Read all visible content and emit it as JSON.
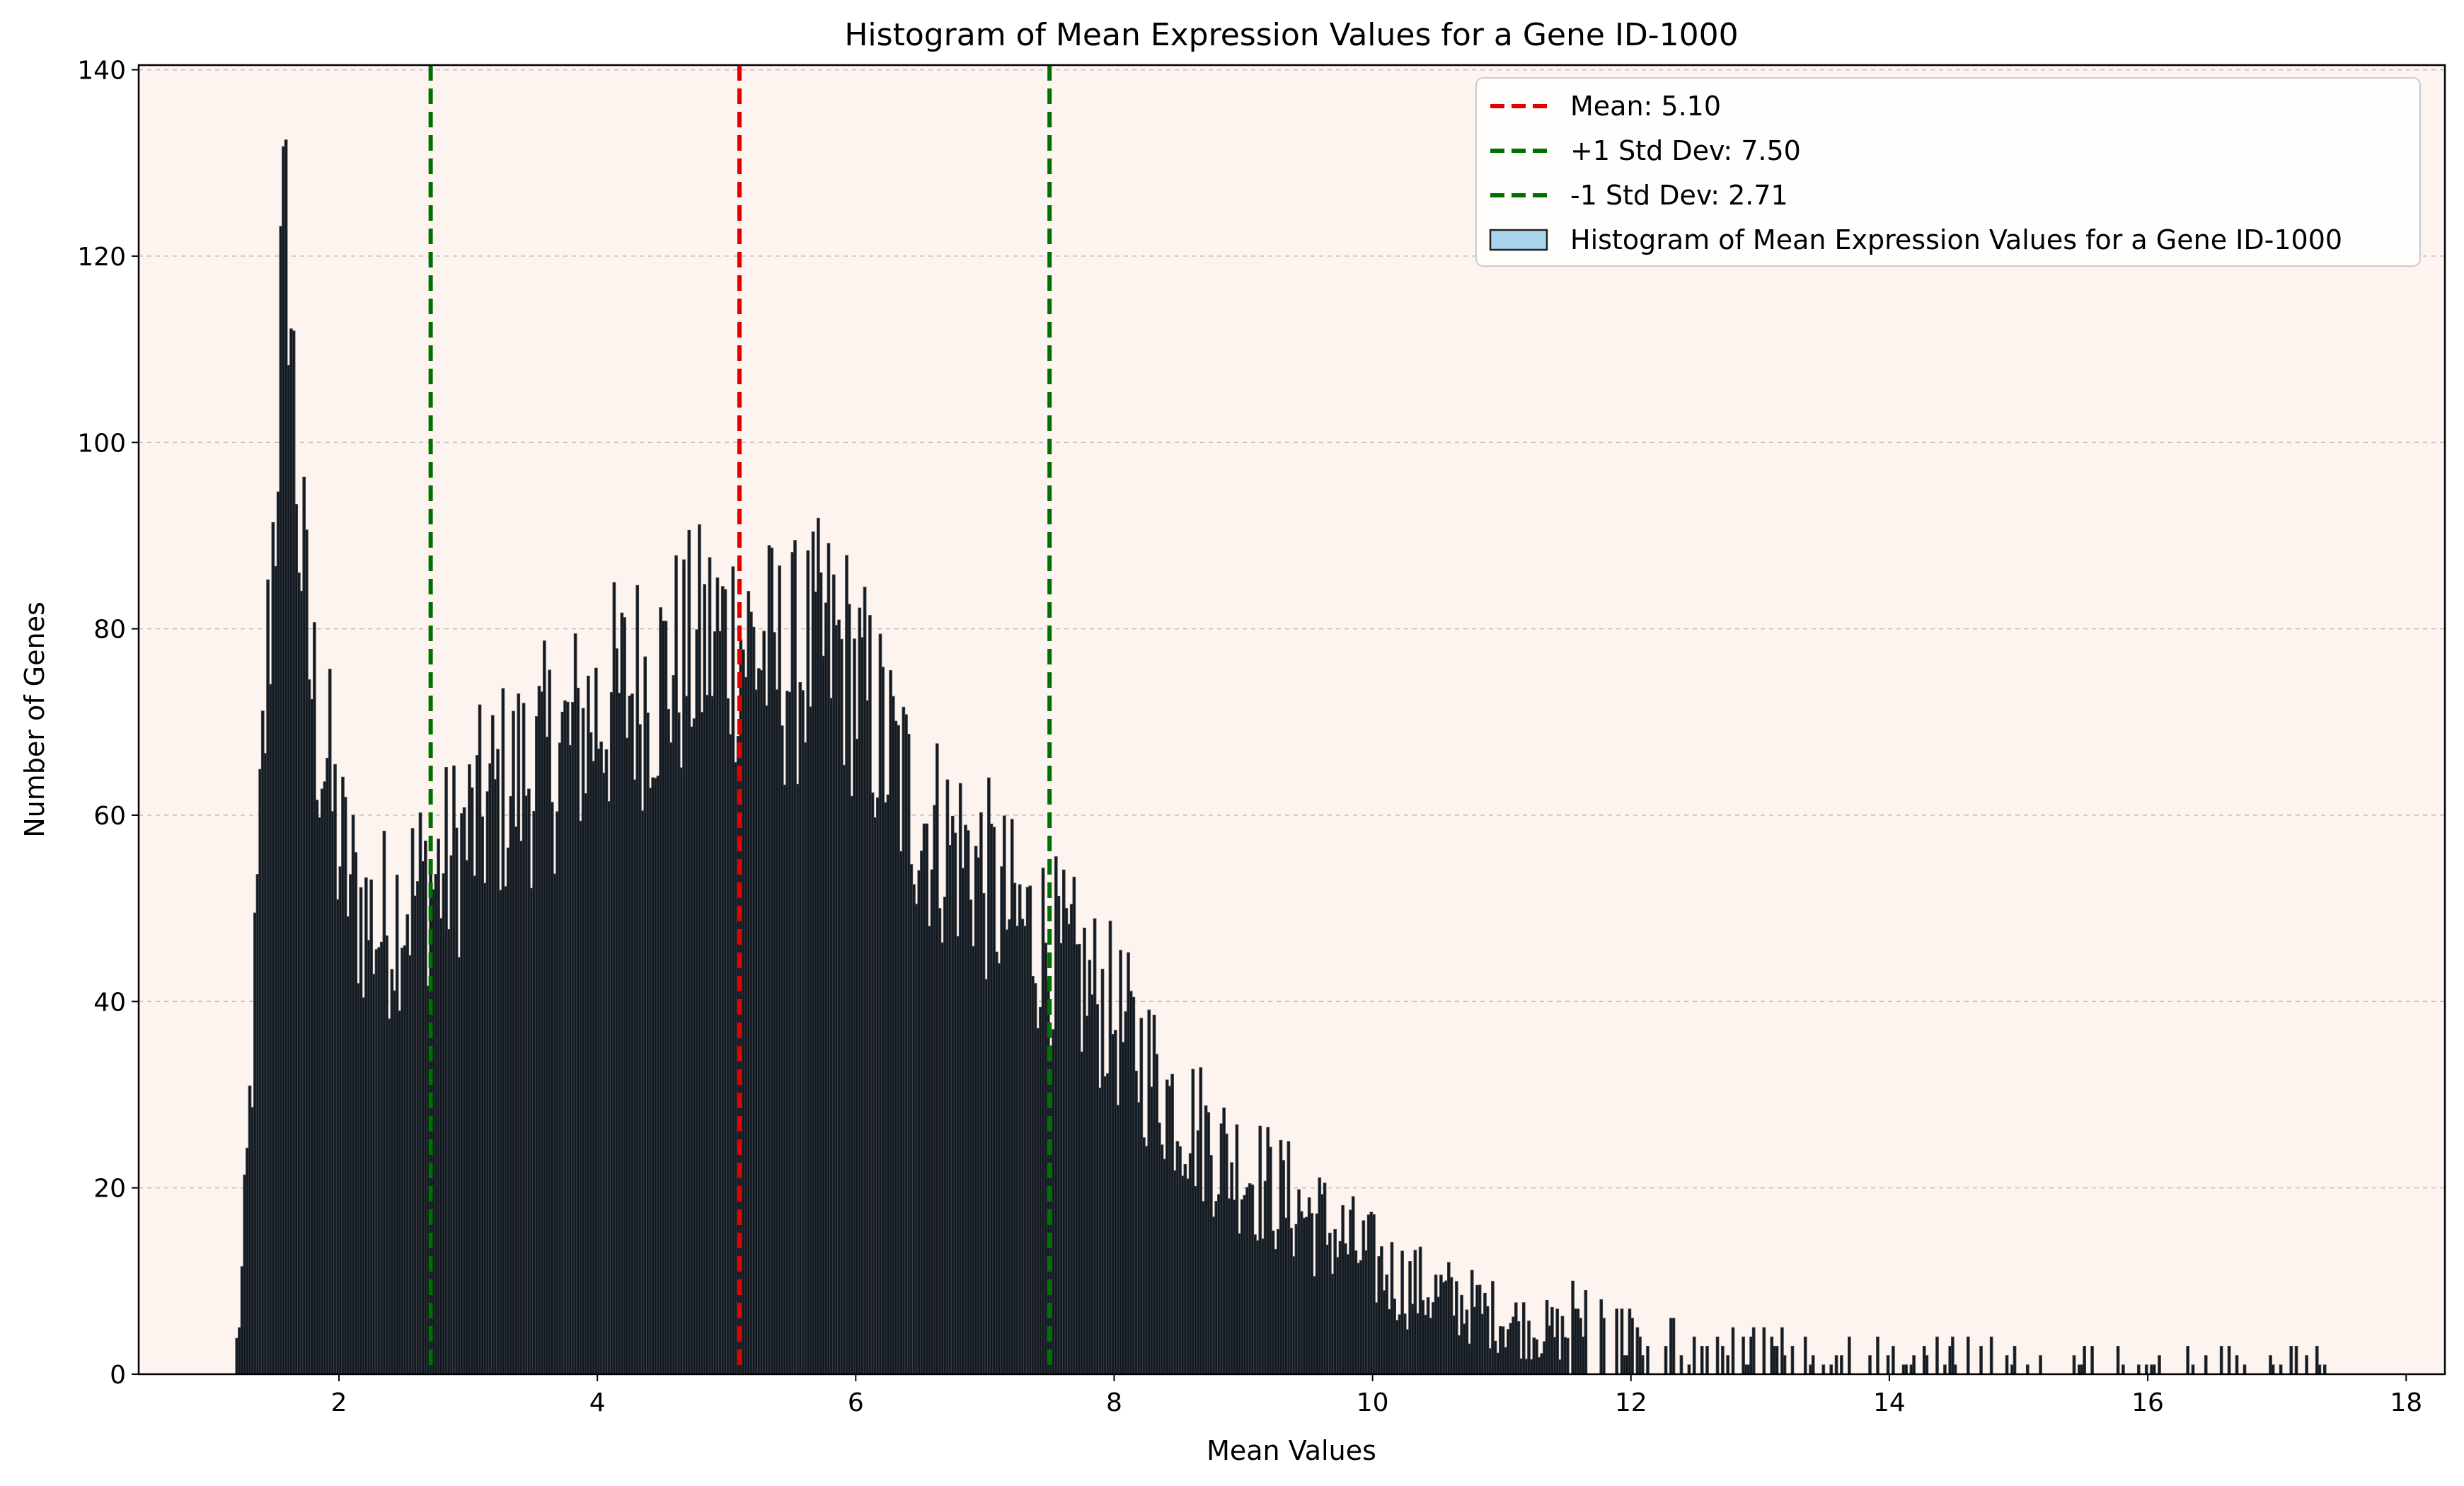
{
  "chart_data": {
    "type": "bar",
    "title": "Histogram of Mean Expression Values for a Gene ID-1000",
    "xlabel": "Mean Values",
    "ylabel": "Number of Genes",
    "xlim": [
      0.45,
      18.3
    ],
    "ylim": [
      0,
      140.5
    ],
    "xticks": [
      "2",
      "4",
      "6",
      "8",
      "10",
      "12",
      "14",
      "16",
      "18"
    ],
    "yticks": [
      "0",
      "20",
      "40",
      "60",
      "80",
      "100",
      "120",
      "140"
    ],
    "grid": "y-dashed",
    "background": "#fdf3ef",
    "bar_color": "#111820",
    "legend_position": "top-right",
    "histogram": {
      "bin_width": 0.02,
      "x": [
        1.2,
        1.25,
        1.3,
        1.35,
        1.4,
        1.45,
        1.5,
        1.55,
        1.6,
        1.65,
        1.7,
        1.75,
        1.8,
        1.85,
        1.9,
        1.95,
        2.0,
        2.1,
        2.2,
        2.3,
        2.4,
        2.5,
        2.6,
        2.7,
        2.8,
        2.9,
        3.0,
        3.1,
        3.2,
        3.3,
        3.4,
        3.5,
        3.6,
        3.7,
        3.8,
        3.9,
        4.0,
        4.1,
        4.2,
        4.3,
        4.4,
        4.5,
        4.6,
        4.7,
        4.8,
        4.9,
        5.0,
        5.1,
        5.2,
        5.3,
        5.4,
        5.5,
        5.6,
        5.7,
        5.8,
        5.9,
        6.0,
        6.1,
        6.2,
        6.3,
        6.4,
        6.5,
        6.6,
        6.7,
        6.8,
        6.9,
        7.0,
        7.1,
        7.2,
        7.3,
        7.4,
        7.5,
        7.6,
        7.7,
        7.8,
        7.9,
        8.0,
        8.2,
        8.4,
        8.6,
        8.8,
        9.0,
        9.2,
        9.4,
        9.6,
        9.8,
        10.0,
        10.2,
        10.4,
        10.6,
        10.8,
        11.0,
        11.2,
        11.4,
        11.6,
        11.8,
        12.0,
        12.2,
        12.4,
        12.6,
        12.8,
        13.0,
        13.2,
        13.4,
        13.6,
        13.8,
        14.0,
        14.2,
        14.4,
        14.6,
        14.8,
        15.0,
        15.2,
        15.4,
        15.6,
        15.8,
        16.0,
        16.2,
        16.4,
        16.6,
        16.8,
        17.0,
        17.2,
        17.4,
        17.5
      ],
      "counts": [
        3,
        12,
        28,
        45,
        65,
        80,
        95,
        118,
        122,
        100,
        88,
        78,
        72,
        68,
        66,
        60,
        56,
        52,
        49,
        48,
        49,
        51,
        52,
        53,
        54,
        56,
        58,
        60,
        62,
        63,
        64,
        65,
        66,
        67,
        68,
        70,
        71,
        72,
        73,
        74,
        74,
        75,
        76,
        77,
        78,
        79,
        79,
        79,
        78,
        77,
        76,
        76,
        77,
        78,
        78,
        77,
        74,
        71,
        68,
        65,
        62,
        60,
        58,
        57,
        56,
        55,
        53,
        51,
        49,
        48,
        47,
        46,
        44,
        43,
        41,
        40,
        38,
        34,
        30,
        27,
        24,
        22,
        20,
        18,
        16,
        14,
        12,
        10,
        9,
        8,
        7,
        6,
        5,
        4.5,
        4,
        3.5,
        3,
        2.5,
        2,
        2,
        1.5,
        1.5,
        1,
        1,
        1,
        0.8,
        0.6,
        0.5,
        0.5,
        0.4,
        0.4,
        0.3,
        0.3,
        0.2,
        0.2,
        0.2,
        0.2,
        0.1,
        0.1,
        0.1,
        0.1,
        0.1,
        0.1,
        0.1,
        0
      ]
    },
    "reference_lines": [
      {
        "name": "Mean: 5.10",
        "x": 5.1,
        "color": "#e00000",
        "style": "dashed"
      },
      {
        "name": "+1 Std Dev: 7.50",
        "x": 7.5,
        "color": "#007000",
        "style": "dashed"
      },
      {
        "name": "-1 Std Dev: 2.71",
        "x": 2.71,
        "color": "#007000",
        "style": "dashed"
      }
    ],
    "legend": [
      {
        "label": "Mean: 5.10",
        "kind": "line",
        "color": "#e00000"
      },
      {
        "label": "+1 Std Dev: 7.50",
        "kind": "line",
        "color": "#007000"
      },
      {
        "label": "-1 Std Dev: 2.71",
        "kind": "line",
        "color": "#007000"
      },
      {
        "label": "Histogram of Mean Expression Values for a Gene ID-1000",
        "kind": "patch",
        "color": "#a8d5ec"
      }
    ]
  }
}
